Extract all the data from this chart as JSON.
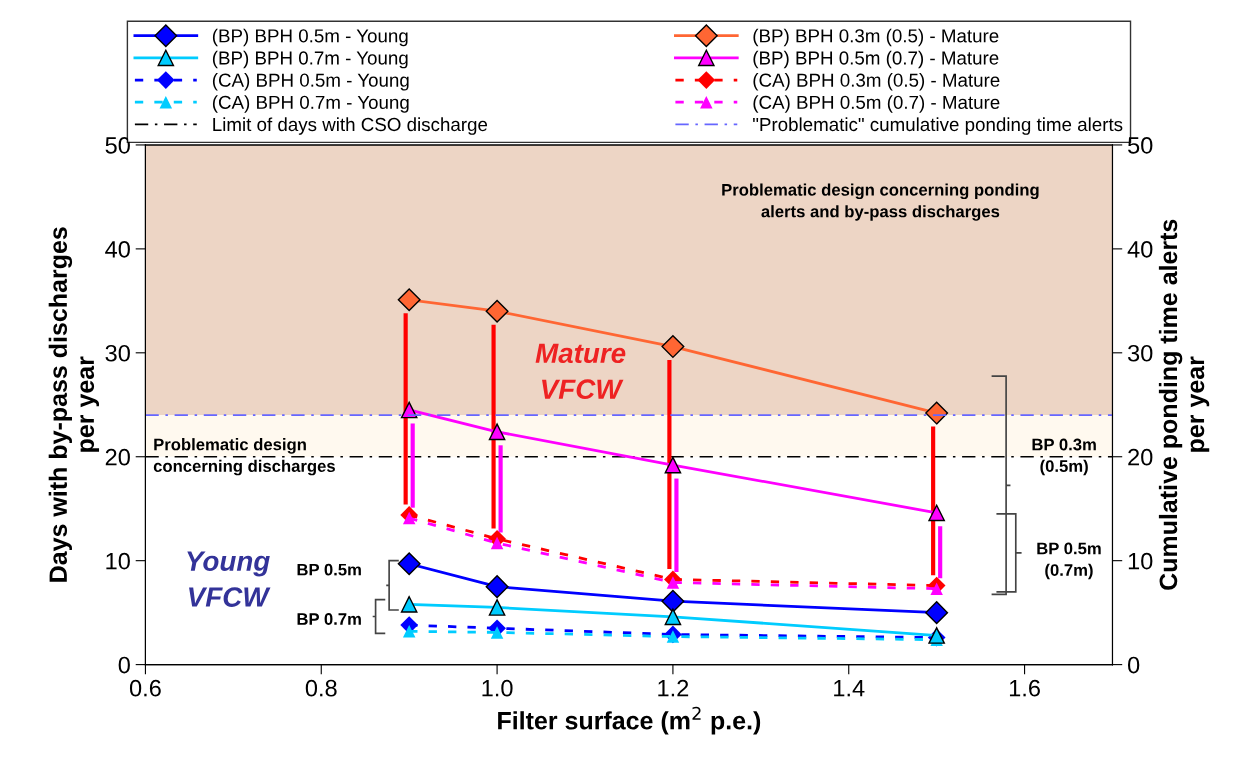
{
  "chart_data": {
    "type": "line",
    "xlabel": "Filter surface (m$^{2}$ p.e.)",
    "ylabel": "Days with by-pass discharges\nper year",
    "y2label": "Cumulative ponding time alerts\nper year",
    "x": [
      0.9,
      1.0,
      1.2,
      1.5
    ],
    "xlim": [
      0.6,
      1.7
    ],
    "xticks": [
      {
        "value": 0.6,
        "label": "0.6"
      },
      {
        "value": 0.8,
        "label": "0.8"
      },
      {
        "value": 1.0,
        "label": "1.0"
      },
      {
        "value": 1.2,
        "label": "1.2"
      },
      {
        "value": 1.4,
        "label": "1.4"
      },
      {
        "value": 1.6,
        "label": "1.6"
      }
    ],
    "ylim": [
      0,
      50
    ],
    "yticks": [
      0,
      10,
      20,
      30,
      40,
      50
    ],
    "y2lim": [
      0,
      50
    ],
    "y2ticks": [
      0,
      10,
      20,
      30,
      40,
      50
    ],
    "series": [
      {
        "name": "(BP) BPH 0.5m - Young",
        "color": "#0000ff",
        "marker": "diamond",
        "line_style": "solid",
        "values": [
          9.7,
          7.5,
          6.1,
          5.0
        ]
      },
      {
        "name": "(BP) BPH 0.7m - Young",
        "color": "#00ccff",
        "marker": "triangle",
        "line_style": "solid",
        "values": [
          5.8,
          5.5,
          4.6,
          2.8
        ]
      },
      {
        "name": "(CA) BPH 0.5m - Young",
        "color": "#0000ff",
        "marker": "diamond",
        "line_style": "dashed",
        "values": [
          3.8,
          3.5,
          2.9,
          2.6
        ]
      },
      {
        "name": "(CA) BPH 0.7m - Young",
        "color": "#00ccff",
        "marker": "triangle",
        "line_style": "dashed",
        "values": [
          3.2,
          3.1,
          2.7,
          2.4
        ]
      },
      {
        "name": "(BP) BPH 0.3m (0.5) - Mature",
        "color": "#ff6633",
        "marker": "diamond",
        "line_style": "solid",
        "values": [
          35.1,
          34.0,
          30.6,
          24.2
        ]
      },
      {
        "name": "(BP) BPH 0.5m (0.7) - Mature",
        "color": "#ff00ff",
        "marker": "triangle",
        "line_style": "solid",
        "values": [
          24.5,
          22.4,
          19.2,
          14.6
        ]
      },
      {
        "name": "(CA) BPH 0.3m (0.5) - Mature",
        "color": "#ff0000",
        "marker": "diamond",
        "line_style": "dashed",
        "values": [
          14.4,
          12.1,
          8.2,
          7.6
        ]
      },
      {
        "name": "(CA) BPH 0.5m (0.7) - Mature",
        "color": "#ff00ff",
        "marker": "triangle",
        "line_style": "dashed",
        "values": [
          14.1,
          11.7,
          7.9,
          7.3
        ]
      }
    ],
    "ref_lines": [
      {
        "axis": "y",
        "value": 20,
        "label": "Limit of days with CSO discharge",
        "color": "#000000",
        "line_style": "dashdot"
      },
      {
        "axis": "y2",
        "value": 24,
        "label": "\"Problematic\" cumulative ponding time alerts",
        "color": "#6666ff",
        "line_style": "dashdot"
      }
    ],
    "bands": [
      {
        "axis": "y",
        "from": 24,
        "to": 50,
        "color": "#edd5c5"
      },
      {
        "axis": "y",
        "from": 20,
        "to": 24,
        "color": "#fff9ef"
      }
    ],
    "annotations": [
      "Problematic design concerning ponding\nalerts and by-pass discharges",
      "Problematic design\nconcerning discharges",
      "Mature\nVFCW",
      "Young\nVFCW",
      "BP 0.5m",
      "BP 0.7m",
      "BP 0.3m\n(0.5m)",
      "BP 0.5m\n(0.7m)"
    ],
    "legend": "top",
    "grid": false
  }
}
